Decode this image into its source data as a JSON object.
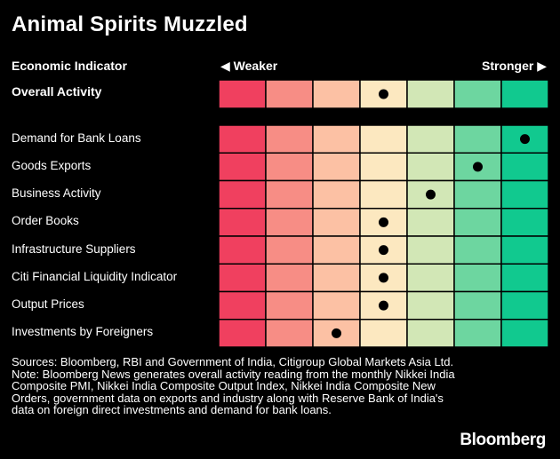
{
  "title": "Animal Spirits Muzzled",
  "header": {
    "indicator": "Economic Indicator",
    "weaker": "◀ Weaker",
    "stronger": "Stronger ▶"
  },
  "chart_data": {
    "type": "heatmap",
    "scale_levels": 7,
    "scale_colors": [
      "#f0405f",
      "#f78d85",
      "#fcc1a4",
      "#fce8c0",
      "#d2e7b6",
      "#6dd6a0",
      "#11c98f"
    ],
    "overall": {
      "name": "Overall Activity",
      "level": 4
    },
    "rows": [
      {
        "name": "Demand for Bank Loans",
        "level": 7
      },
      {
        "name": "Goods Exports",
        "level": 6
      },
      {
        "name": "Business Activity",
        "level": 5
      },
      {
        "name": "Order Books",
        "level": 4
      },
      {
        "name": "Infrastructure Suppliers",
        "level": 4
      },
      {
        "name": "Citi Financial Liquidity Indicator",
        "level": 4
      },
      {
        "name": "Output Prices",
        "level": 4
      },
      {
        "name": "Investments by Foreigners",
        "level": 3
      }
    ]
  },
  "footnote": "Sources: Bloomberg, RBI and Government of India, Citigroup Global Markets Asia Ltd.\nNote: Bloomberg News generates overall activity reading from the monthly Nikkei India Composite PMI, Nikkei India Composite Output Index, Nikkei India Composite New Orders, government data on exports and industry along with Reserve Bank of India's data on foreign direct investments and demand for bank loans.",
  "brand": "Bloomberg"
}
